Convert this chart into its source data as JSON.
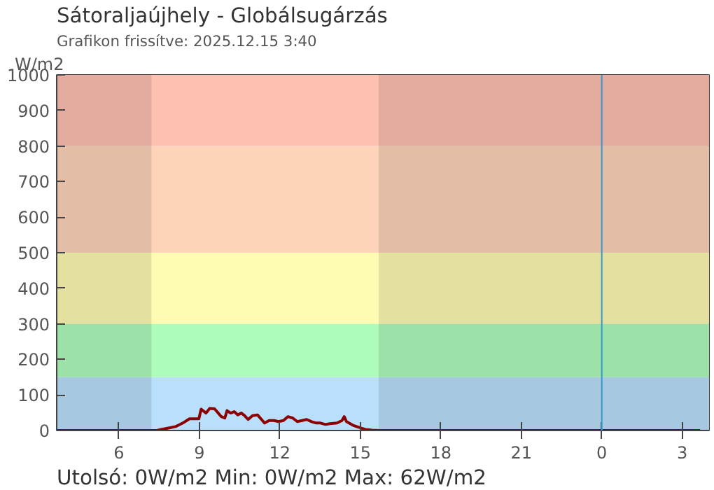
{
  "chart_data": {
    "type": "line",
    "title": "Sátoraljaújhely - Globálsugárzás",
    "subtitle": "Grafikon frissítve: 2025.12.15 3:40",
    "ylabel": "W/m2",
    "annotations": [
      "Utolsó: 0W/m2  Min: 0W/m2  Max: 62W/m2"
    ],
    "series": [
      {
        "color": "#8b0000",
        "x": [
          "2025-12-14T03:41",
          "2025-12-14T07:25",
          "2025-12-14T07:35",
          "2025-12-14T07:51",
          "2025-12-14T08:07",
          "2025-12-14T08:23",
          "2025-12-14T08:38",
          "2025-12-14T08:59",
          "2025-12-14T09:04",
          "2025-12-14T09:15",
          "2025-12-14T09:23",
          "2025-12-14T09:34",
          "2025-12-14T09:41",
          "2025-12-14T09:49",
          "2025-12-14T09:57",
          "2025-12-14T10:02",
          "2025-12-14T10:10",
          "2025-12-14T10:18",
          "2025-12-14T10:26",
          "2025-12-14T10:34",
          "2025-12-14T10:41",
          "2025-12-14T10:49",
          "2025-12-14T10:59",
          "2025-12-14T11:10",
          "2025-12-14T11:19",
          "2025-12-14T11:26",
          "2025-12-14T11:36",
          "2025-12-14T11:47",
          "2025-12-14T11:57",
          "2025-12-14T12:08",
          "2025-12-14T12:18",
          "2025-12-14T12:29",
          "2025-12-14T12:39",
          "2025-12-14T12:50",
          "2025-12-14T13:00",
          "2025-12-14T13:11",
          "2025-12-14T13:21",
          "2025-12-14T13:31",
          "2025-12-14T13:42",
          "2025-12-14T13:52",
          "2025-12-14T14:08",
          "2025-12-14T14:19",
          "2025-12-14T14:24",
          "2025-12-14T14:29",
          "2025-12-14T14:45",
          "2025-12-14T15:01",
          "2025-12-14T15:11",
          "2025-12-14T15:26",
          "2025-12-14T15:43",
          "2025-12-15T03:40"
        ],
        "values": [
          0,
          0,
          3,
          7,
          11,
          21,
          33,
          33,
          60,
          49,
          62,
          61,
          51,
          39,
          35,
          56,
          49,
          53,
          44,
          49,
          42,
          31,
          42,
          44,
          31,
          21,
          28,
          28,
          25,
          28,
          39,
          35,
          25,
          28,
          31,
          25,
          21,
          21,
          17,
          19,
          21,
          28,
          39,
          25,
          14,
          7,
          3,
          1,
          0,
          0
        ]
      }
    ],
    "xlim": [
      "2025-12-14T03:41",
      "2025-12-15T04:00"
    ],
    "xticks": [
      {
        "value": "2025-12-14T06:00",
        "label": "6"
      },
      {
        "value": "2025-12-14T09:00",
        "label": "9"
      },
      {
        "value": "2025-12-14T12:00",
        "label": "12"
      },
      {
        "value": "2025-12-14T15:00",
        "label": "15"
      },
      {
        "value": "2025-12-14T18:00",
        "label": "18"
      },
      {
        "value": "2025-12-14T21:00",
        "label": "21"
      },
      {
        "value": "2025-12-15T00:00",
        "label": "0"
      },
      {
        "value": "2025-12-15T03:00",
        "label": "3"
      }
    ],
    "ylim": [
      0,
      1000
    ],
    "yticks": [
      0,
      100,
      200,
      300,
      400,
      500,
      600,
      700,
      800,
      900,
      1000
    ],
    "bands": [
      {
        "axis": "y",
        "from": 0,
        "to": 150,
        "color": "#b9dffb"
      },
      {
        "axis": "y",
        "from": 150,
        "to": 300,
        "color": "#aefcbc"
      },
      {
        "axis": "y",
        "from": 300,
        "to": 500,
        "color": "#fefbb3"
      },
      {
        "axis": "y",
        "from": 500,
        "to": 800,
        "color": "#fed3b9"
      },
      {
        "axis": "y",
        "from": 800,
        "to": 1000,
        "color": "#fec0b0"
      },
      {
        "axis": "x",
        "from": "2025-12-14T03:41",
        "to": "2025-12-14T07:13",
        "color": "#000000"
      },
      {
        "axis": "x",
        "from": "2025-12-14T15:41",
        "to": "2025-12-15T04:00",
        "color": "#000000"
      }
    ],
    "ref_lines": [
      {
        "axis": "x",
        "value": "2025-12-15T00:00",
        "color": "#3399cc"
      }
    ],
    "grid": false
  }
}
